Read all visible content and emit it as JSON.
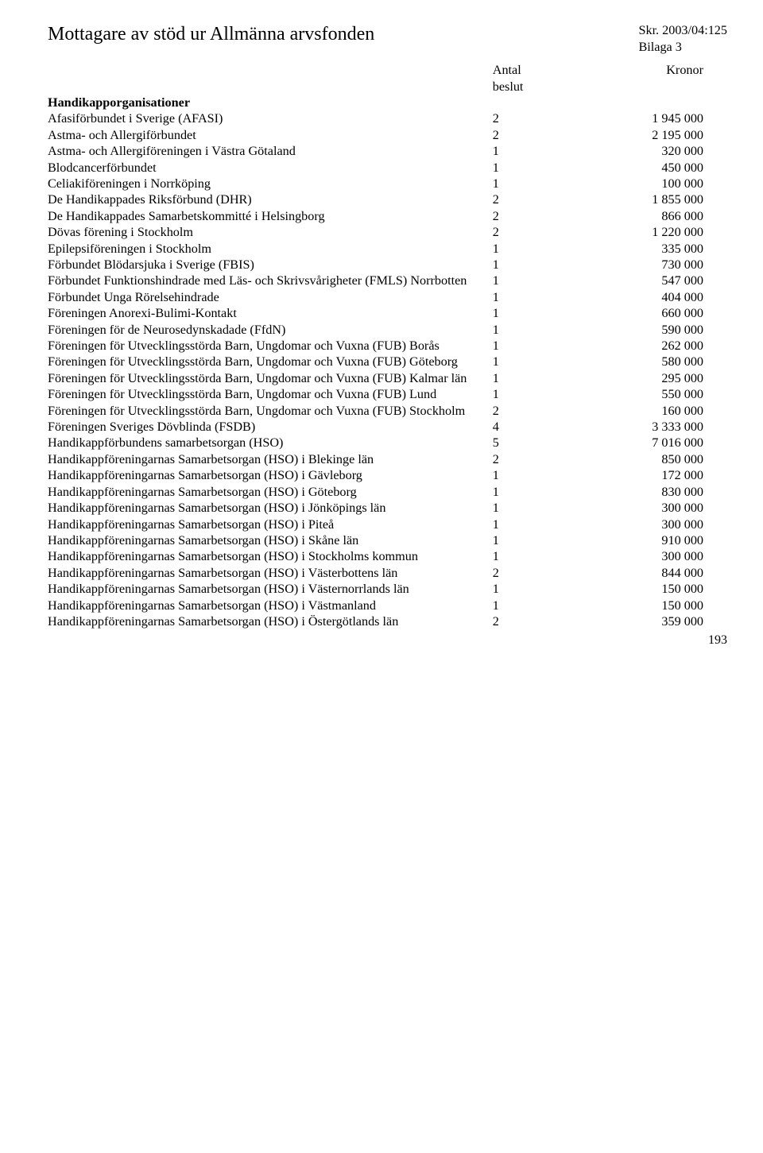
{
  "page_title": "Mottagare av stöd ur Allmänna arvsfonden",
  "doc_ref_line1": "Skr. 2003/04:125",
  "doc_ref_line2": "Bilaga 3",
  "header_col2a": "Antal",
  "header_col2b": "beslut",
  "header_col3": "Kronor",
  "section_heading": "Handikapporganisationer",
  "page_number": "193",
  "rows": [
    {
      "name": "Afasiförbundet i Sverige (AFASI)",
      "num": "2",
      "kr": "1 945 000"
    },
    {
      "name": "Astma- och Allergiförbundet",
      "num": "2",
      "kr": "2 195 000"
    },
    {
      "name": "Astma- och Allergiföreningen i Västra Götaland",
      "num": "1",
      "kr": "320 000"
    },
    {
      "name": "Blodcancerförbundet",
      "num": "1",
      "kr": "450 000"
    },
    {
      "name": "Celiakiföreningen i Norrköping",
      "num": "1",
      "kr": "100 000"
    },
    {
      "name": "De Handikappades Riksförbund (DHR)",
      "num": "2",
      "kr": "1 855 000"
    },
    {
      "name": "De Handikappades Samarbetskommitté i Helsingborg",
      "num": "2",
      "kr": "866 000"
    },
    {
      "name": "Dövas förening i Stockholm",
      "num": "2",
      "kr": "1 220 000"
    },
    {
      "name": "Epilepsiföreningen i Stockholm",
      "num": "1",
      "kr": "335 000"
    },
    {
      "name": "Förbundet Blödarsjuka i Sverige (FBIS)",
      "num": "1",
      "kr": "730 000"
    },
    {
      "name": "Förbundet Funktionshindrade med Läs- och Skrivsvårigheter (FMLS) Norrbotten",
      "num": "1",
      "kr": "547 000"
    },
    {
      "name": "Förbundet Unga Rörelsehindrade",
      "num": "1",
      "kr": "404 000"
    },
    {
      "name": "Föreningen Anorexi-Bulimi-Kontakt",
      "num": "1",
      "kr": "660 000"
    },
    {
      "name": "Föreningen för de Neurosedynskadade (FfdN)",
      "num": "1",
      "kr": "590 000"
    },
    {
      "name": "Föreningen för Utvecklingsstörda Barn, Ungdomar och Vuxna (FUB) Borås",
      "num": "1",
      "kr": "262 000"
    },
    {
      "name": "Föreningen för Utvecklingsstörda Barn, Ungdomar och Vuxna (FUB) Göteborg",
      "num": "1",
      "kr": "580 000"
    },
    {
      "name": "Föreningen för Utvecklingsstörda Barn, Ungdomar och Vuxna (FUB) Kalmar län",
      "num": "1",
      "kr": "295 000"
    },
    {
      "name": "Föreningen för Utvecklingsstörda Barn, Ungdomar och Vuxna (FUB) Lund",
      "num": "1",
      "kr": "550 000"
    },
    {
      "name": "Föreningen för Utvecklingsstörda Barn, Ungdomar och Vuxna (FUB) Stockholm",
      "num": "2",
      "kr": "160 000"
    },
    {
      "name": "Föreningen Sveriges Dövblinda (FSDB)",
      "num": "4",
      "kr": "3 333 000"
    },
    {
      "name": "Handikappförbundens samarbetsorgan (HSO)",
      "num": "5",
      "kr": "7 016 000"
    },
    {
      "name": "Handikappföreningarnas Samarbetsorgan (HSO) i Blekinge län",
      "num": "2",
      "kr": "850 000"
    },
    {
      "name": "Handikappföreningarnas Samarbetsorgan (HSO) i Gävleborg",
      "num": "1",
      "kr": "172 000"
    },
    {
      "name": "Handikappföreningarnas Samarbetsorgan (HSO) i Göteborg",
      "num": "1",
      "kr": "830 000"
    },
    {
      "name": "Handikappföreningarnas Samarbetsorgan (HSO) i Jönköpings län",
      "num": "1",
      "kr": "300 000"
    },
    {
      "name": "Handikappföreningarnas Samarbetsorgan (HSO) i Piteå",
      "num": "1",
      "kr": "300 000"
    },
    {
      "name": "Handikappföreningarnas Samarbetsorgan (HSO) i Skåne län",
      "num": "1",
      "kr": "910 000"
    },
    {
      "name": "Handikappföreningarnas Samarbetsorgan (HSO) i Stockholms kommun",
      "num": "1",
      "kr": "300 000"
    },
    {
      "name": "Handikappföreningarnas Samarbetsorgan (HSO) i Västerbottens län",
      "num": "2",
      "kr": "844 000"
    },
    {
      "name": "Handikappföreningarnas Samarbetsorgan (HSO) i Västernorrlands län",
      "num": "1",
      "kr": "150 000"
    },
    {
      "name": "Handikappföreningarnas Samarbetsorgan (HSO) i Västmanland",
      "num": "1",
      "kr": "150 000"
    },
    {
      "name": "Handikappföreningarnas Samarbetsorgan (HSO) i Östergötlands län",
      "num": "2",
      "kr": "359 000"
    }
  ]
}
